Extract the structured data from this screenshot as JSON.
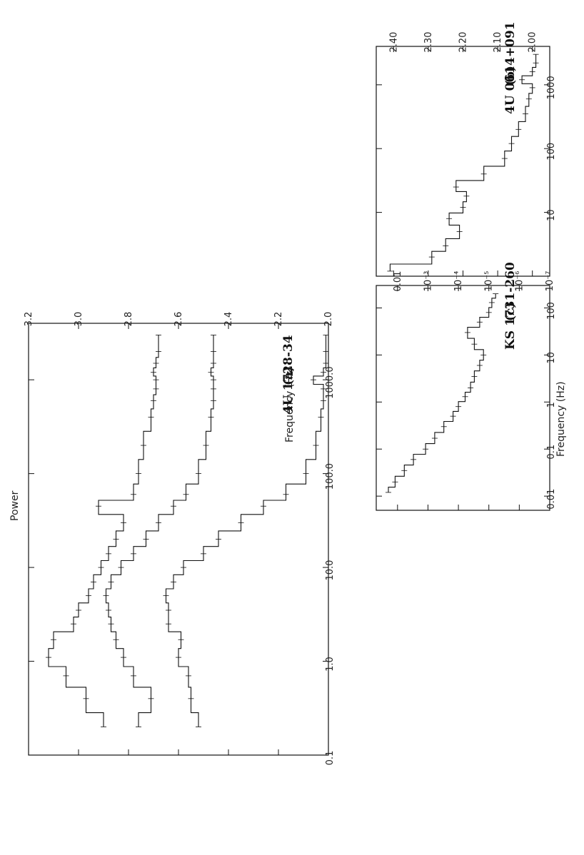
{
  "chart_data": [
    {
      "type": "line",
      "panel_label": "(a)",
      "source_name": "4U 1728-34",
      "xlabel": "Frequency (Hz)",
      "ylabel": "Power",
      "xscale": "log",
      "xlim": [
        0.1,
        4000
      ],
      "ylim": [
        2.0,
        3.2
      ],
      "x_ticks": [
        "0.1",
        "1.0",
        "10.0",
        "100.0",
        "1000.0"
      ],
      "y_ticks": [
        "2.0",
        "2.2",
        "2.4",
        "2.6",
        "2.8",
        "3.0",
        "3.2"
      ],
      "series": [
        {
          "x": [
            0.2,
            0.4,
            0.7,
            1.1,
            1.7,
            2.5,
            3.5,
            5,
            7,
            10,
            14,
            20,
            30,
            45,
            60,
            100,
            200,
            400,
            600,
            800,
            1000,
            1200,
            1500,
            2000,
            3000
          ],
          "y": [
            2.9,
            2.97,
            3.05,
            3.12,
            3.1,
            3.02,
            3.0,
            2.96,
            2.94,
            2.91,
            2.88,
            2.85,
            2.82,
            2.92,
            2.78,
            2.76,
            2.74,
            2.71,
            2.7,
            2.69,
            2.69,
            2.7,
            2.69,
            2.68,
            2.68
          ]
        },
        {
          "x": [
            0.2,
            0.4,
            0.7,
            1.1,
            1.7,
            2.5,
            3.5,
            5,
            7,
            10,
            14,
            20,
            30,
            45,
            60,
            100,
            200,
            400,
            600,
            800,
            1000,
            1200,
            1500,
            2000,
            3000
          ],
          "y": [
            2.76,
            2.71,
            2.78,
            2.82,
            2.85,
            2.87,
            2.88,
            2.89,
            2.87,
            2.83,
            2.78,
            2.73,
            2.68,
            2.62,
            2.57,
            2.52,
            2.49,
            2.47,
            2.46,
            2.46,
            2.46,
            2.47,
            2.46,
            2.46,
            2.46
          ]
        },
        {
          "x": [
            0.2,
            0.4,
            0.7,
            1.1,
            1.7,
            2.5,
            3.5,
            5,
            7,
            10,
            14,
            20,
            30,
            45,
            60,
            100,
            200,
            400,
            600,
            800,
            1000,
            1200,
            1500,
            2000,
            3000
          ],
          "y": [
            2.52,
            2.55,
            2.56,
            2.6,
            2.59,
            2.64,
            2.64,
            2.65,
            2.62,
            2.58,
            2.5,
            2.44,
            2.35,
            2.26,
            2.17,
            2.09,
            2.05,
            2.03,
            2.02,
            2.02,
            2.06,
            2.02,
            2.01,
            2.01,
            2.01
          ]
        }
      ]
    },
    {
      "type": "line",
      "panel_label": "(b)",
      "source_name": "4U 0614+091",
      "xscale": "log",
      "xlim": [
        1,
        4000
      ],
      "ylim": [
        1.95,
        2.45
      ],
      "x_ticks": [
        "10",
        "100",
        "1000"
      ],
      "y_ticks": [
        "2.00",
        "2.10",
        "2.20",
        "2.30",
        "2.40"
      ],
      "series": [
        {
          "x": [
            1.2,
            2,
            3,
            5,
            8,
            12,
            18,
            25,
            40,
            70,
            120,
            200,
            350,
            600,
            900,
            1200,
            1600,
            2200,
            3000
          ],
          "y": [
            2.41,
            2.29,
            2.25,
            2.21,
            2.24,
            2.2,
            2.19,
            2.22,
            2.14,
            2.08,
            2.06,
            2.04,
            2.02,
            2.01,
            2.0,
            2.03,
            2.0,
            1.99,
            1.99
          ]
        }
      ]
    },
    {
      "type": "bar",
      "panel_label": "(c)",
      "source_name": "KS 1731-260",
      "xlabel": "Frequency (Hz)",
      "xscale": "log",
      "yscale": "log",
      "xlim": [
        0.005,
        300
      ],
      "ylim": [
        1e-07,
        0.05
      ],
      "x_ticks": [
        "0.01",
        "0.1",
        "1",
        "10",
        "100"
      ],
      "y_ticks": [
        "0.01",
        "10⁻³",
        "10⁻⁴",
        "10⁻⁵",
        "10⁻⁶",
        "10⁻⁷"
      ],
      "series": [
        {
          "x": [
            0.012,
            0.02,
            0.035,
            0.06,
            0.1,
            0.17,
            0.3,
            0.5,
            0.8,
            1.3,
            2,
            3.5,
            6,
            10,
            17,
            30,
            50,
            80,
            130,
            200
          ],
          "y": [
            0.02,
            0.012,
            0.006,
            0.003,
            0.0012,
            0.0006,
            0.0003,
            0.00015,
            0.0001,
            6e-05,
            4e-05,
            3e-05,
            2e-05,
            1.5e-05,
            3e-05,
            5e-05,
            2e-05,
            1e-05,
            8e-06,
            6e-06
          ]
        }
      ]
    }
  ]
}
